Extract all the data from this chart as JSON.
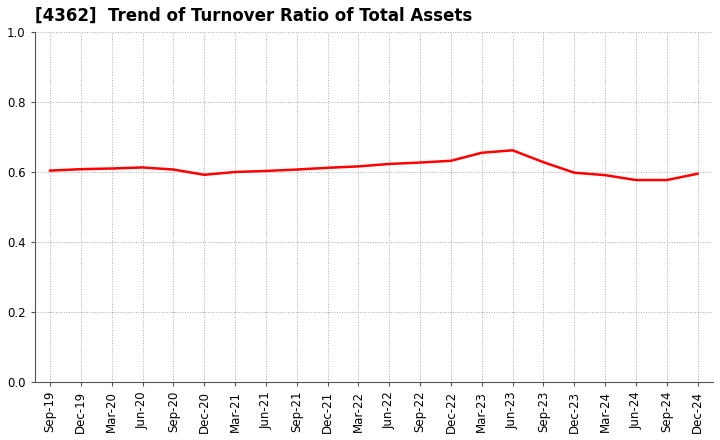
{
  "title": "[4362]  Trend of Turnover Ratio of Total Assets",
  "x_labels": [
    "Sep-19",
    "Dec-19",
    "Mar-20",
    "Jun-20",
    "Sep-20",
    "Dec-20",
    "Mar-21",
    "Jun-21",
    "Sep-21",
    "Dec-21",
    "Mar-22",
    "Jun-22",
    "Sep-22",
    "Dec-22",
    "Mar-23",
    "Jun-23",
    "Sep-23",
    "Dec-23",
    "Mar-24",
    "Jun-24",
    "Sep-24",
    "Dec-24"
  ],
  "y_values": [
    0.604,
    0.608,
    0.61,
    0.613,
    0.607,
    0.592,
    0.6,
    0.603,
    0.607,
    0.612,
    0.616,
    0.623,
    0.627,
    0.632,
    0.655,
    0.662,
    0.628,
    0.598,
    0.591,
    0.577,
    0.577,
    0.595
  ],
  "line_color": "#FF0000",
  "line_width": 1.8,
  "ylim": [
    0.0,
    1.0
  ],
  "yticks": [
    0.0,
    0.2,
    0.4,
    0.6,
    0.8,
    1.0
  ],
  "grid_color": "#aaaaaa",
  "background_color": "#ffffff",
  "title_fontsize": 12,
  "tick_fontsize": 8.5
}
